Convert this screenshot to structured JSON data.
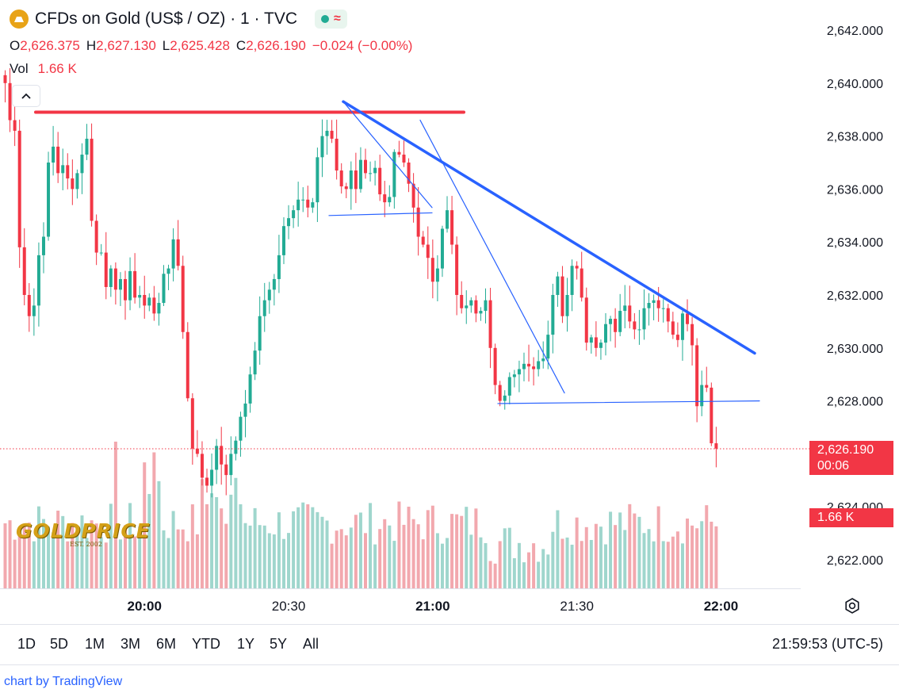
{
  "header": {
    "title": "CFDs on Gold (US$ / OZ) · 1 · TVC",
    "wave_glyph": "≈",
    "ohlc": [
      {
        "key": "O",
        "value": "2,626.375"
      },
      {
        "key": "H",
        "value": "2,627.130"
      },
      {
        "key": "L",
        "value": "2,625.428"
      },
      {
        "key": "C",
        "value": "2,626.190"
      }
    ],
    "change": "−0.024 (−0.00%)",
    "vol_label": "Vol",
    "vol_value": "1.66 K"
  },
  "price_tag": {
    "price": "2,626.190",
    "countdown": "00:06"
  },
  "vol_tag": "1.66 K",
  "logo": {
    "text": "GOLDPRICE",
    "sub": "EST. 2002"
  },
  "ranges": [
    "1D",
    "5D",
    "1M",
    "3M",
    "6M",
    "YTD",
    "1Y",
    "5Y",
    "All"
  ],
  "clock": "21:59:53 (UTC-5)",
  "footer": "chart by TradingView",
  "colors": {
    "up": "#22ab94",
    "down": "#f23645",
    "vol_up": "#9fd6cd",
    "vol_down": "#f2a8ae",
    "drawing_blue": "#2962ff",
    "drawing_red": "#f23645"
  },
  "chart_data": {
    "type": "candlestick",
    "ylim": [
      2621.0,
      2643.1
    ],
    "y_ticks": [
      "2,642.000",
      "2,640.000",
      "2,638.000",
      "2,636.000",
      "2,634.000",
      "2,632.000",
      "2,630.000",
      "2,628.000",
      "2,624.000",
      "2,622.000"
    ],
    "y_tick_values": [
      2642,
      2640,
      2638,
      2636,
      2634,
      2632,
      2630,
      2628,
      2624,
      2622
    ],
    "x_ticks": [
      {
        "label": "20:00",
        "t": 29,
        "bold": true
      },
      {
        "label": "20:30",
        "t": 59,
        "bold": false
      },
      {
        "label": "21:00",
        "t": 89,
        "bold": true
      },
      {
        "label": "21:30",
        "t": 119,
        "bold": false
      },
      {
        "label": "22:00",
        "t": 149,
        "bold": true
      }
    ],
    "last_price": 2626.19,
    "closes": [
      2640.0,
      2638.6,
      2638.2,
      2633.8,
      2632.0,
      2631.2,
      2631.6,
      2633.5,
      2634.2,
      2637.0,
      2637.6,
      2636.6,
      2636.9,
      2636.4,
      2636.0,
      2636.6,
      2637.3,
      2637.9,
      2634.8,
      2633.6,
      2633.6,
      2632.3,
      2633.0,
      2632.2,
      2632.6,
      2631.8,
      2632.9,
      2631.9,
      2632.0,
      2631.6,
      2631.9,
      2631.3,
      2631.7,
      2632.8,
      2633.0,
      2634.1,
      2633.1,
      2630.6,
      2628.1,
      2626.2,
      2626.0,
      2625.1,
      2624.8,
      2625.4,
      2626.3,
      2625.6,
      2625.2,
      2626.0,
      2626.5,
      2627.4,
      2627.9,
      2629.0,
      2629.9,
      2631.2,
      2631.8,
      2632.2,
      2632.6,
      2633.5,
      2634.6,
      2634.9,
      2635.2,
      2635.6,
      2635.6,
      2635.3,
      2635.5,
      2637.2,
      2638.0,
      2638.2,
      2637.9,
      2636.7,
      2636.1,
      2636.0,
      2636.7,
      2636.0,
      2637.1,
      2636.6,
      2636.6,
      2636.8,
      2635.8,
      2635.5,
      2635.7,
      2637.4,
      2637.3,
      2637.0,
      2636.2,
      2635.3,
      2634.2,
      2633.9,
      2633.4,
      2632.5,
      2633.0,
      2634.5,
      2635.2,
      2633.9,
      2632.0,
      2631.5,
      2631.6,
      2631.8,
      2631.3,
      2631.4,
      2631.8,
      2630.0,
      2628.6,
      2628.0,
      2628.2,
      2628.9,
      2629.0,
      2629.2,
      2629.4,
      2629.3,
      2629.2,
      2629.5,
      2629.6,
      2630.5,
      2632.0,
      2632.7,
      2631.2,
      2632.0,
      2633.1,
      2633.0,
      2631.9,
      2630.2,
      2630.4,
      2630.0,
      2630.2,
      2630.9,
      2631.1,
      2630.6,
      2631.4,
      2631.6,
      2631.0,
      2630.7,
      2630.7,
      2631.5,
      2631.7,
      2631.8,
      2631.5,
      2631.5,
      2631.0,
      2630.5,
      2630.3,
      2631.3,
      2630.9,
      2630.1,
      2627.8,
      2628.6,
      2628.5,
      2626.4,
      2626.2
    ]
  }
}
